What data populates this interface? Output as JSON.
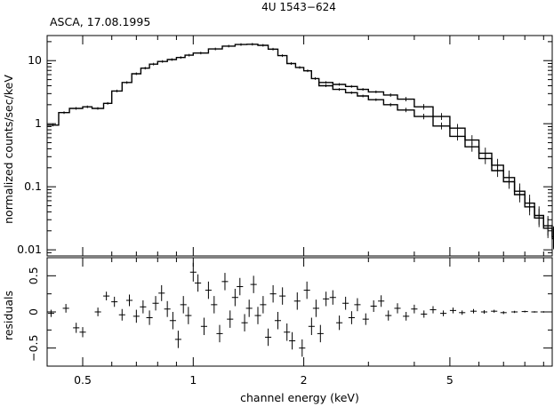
{
  "figure": {
    "title": "4U 1543−624",
    "subtitle": "ASCA, 17.08.1995"
  },
  "chart_data": [
    {
      "type": "line",
      "panel": "spectrum",
      "title": "4U 1543−624",
      "subtitle": "ASCA, 17.08.1995",
      "xlabel": "",
      "ylabel": "normalized counts/sec/keV",
      "xscale": "log",
      "yscale": "log",
      "xlim": [
        0.4,
        9.5
      ],
      "ylim": [
        0.008,
        25
      ],
      "yticks": [
        {
          "value": 0.01,
          "label": "0.01"
        },
        {
          "value": 0.1,
          "label": "0.1"
        },
        {
          "value": 1,
          "label": "1"
        },
        {
          "value": 10,
          "label": "10"
        }
      ],
      "grid": false,
      "series": [
        {
          "x": [
            0.4,
            0.43,
            0.46,
            0.5,
            0.53,
            0.57,
            0.6,
            0.64,
            0.68,
            0.72,
            0.76,
            0.8,
            0.85,
            0.9,
            0.95,
            1.0,
            1.1,
            1.2,
            1.3,
            1.4,
            1.5,
            1.6,
            1.7,
            1.8,
            1.9,
            2.0,
            2.1,
            2.2,
            2.4,
            2.6,
            2.8,
            3.0,
            3.3,
            3.6,
            4.0,
            4.5,
            5.0,
            5.5,
            6.0,
            6.5,
            7.0,
            7.5,
            8.0,
            8.5,
            9.0,
            9.5
          ],
          "values": [
            0.95,
            1.5,
            1.75,
            1.85,
            1.75,
            2.1,
            3.3,
            4.5,
            6.2,
            7.6,
            8.8,
            9.7,
            10.4,
            11.2,
            12.2,
            13.2,
            15.3,
            17.0,
            18.0,
            18.2,
            17.5,
            15.2,
            12.0,
            9.0,
            7.8,
            6.9,
            5.2,
            4.0,
            3.5,
            3.1,
            2.75,
            2.4,
            2.0,
            1.65,
            1.3,
            0.92,
            0.63,
            0.43,
            0.28,
            0.18,
            0.12,
            0.075,
            0.048,
            0.032,
            0.022,
            0.015
          ]
        },
        {
          "x": [
            2.2,
            2.4,
            2.6,
            2.8,
            3.0,
            3.3,
            3.6,
            4.0,
            4.5,
            5.0,
            5.5,
            6.0,
            6.5,
            7.0,
            7.5,
            8.0,
            8.5,
            9.0,
            9.5
          ],
          "values": [
            4.5,
            4.2,
            3.9,
            3.5,
            3.2,
            2.85,
            2.45,
            1.85,
            1.3,
            0.85,
            0.55,
            0.34,
            0.22,
            0.14,
            0.085,
            0.055,
            0.035,
            0.024,
            0.016
          ]
        }
      ]
    },
    {
      "type": "scatter",
      "panel": "residuals",
      "xlabel": "channel energy (keV)",
      "ylabel": "residuals",
      "xscale": "log",
      "xlim": [
        0.4,
        9.5
      ],
      "ylim": [
        -0.75,
        0.75
      ],
      "xticks": [
        {
          "value": 0.5,
          "label": "0.5"
        },
        {
          "value": 1,
          "label": "1"
        },
        {
          "value": 2,
          "label": "2"
        },
        {
          "value": 5,
          "label": "5"
        }
      ],
      "yticks": [
        {
          "value": -0.5,
          "label": "−0.5"
        },
        {
          "value": 0,
          "label": "0"
        },
        {
          "value": 0.5,
          "label": "0.5"
        }
      ],
      "grid": false,
      "points": [
        {
          "x": 0.41,
          "y": -0.02,
          "err": 0.05
        },
        {
          "x": 0.45,
          "y": 0.05,
          "err": 0.06
        },
        {
          "x": 0.48,
          "y": -0.22,
          "err": 0.07
        },
        {
          "x": 0.5,
          "y": -0.28,
          "err": 0.07
        },
        {
          "x": 0.55,
          "y": 0.0,
          "err": 0.06
        },
        {
          "x": 0.58,
          "y": 0.22,
          "err": 0.06
        },
        {
          "x": 0.61,
          "y": 0.14,
          "err": 0.07
        },
        {
          "x": 0.64,
          "y": -0.04,
          "err": 0.08
        },
        {
          "x": 0.67,
          "y": 0.16,
          "err": 0.08
        },
        {
          "x": 0.7,
          "y": -0.06,
          "err": 0.09
        },
        {
          "x": 0.73,
          "y": 0.07,
          "err": 0.09
        },
        {
          "x": 0.76,
          "y": -0.08,
          "err": 0.1
        },
        {
          "x": 0.79,
          "y": 0.12,
          "err": 0.1
        },
        {
          "x": 0.82,
          "y": 0.26,
          "err": 0.11
        },
        {
          "x": 0.85,
          "y": 0.04,
          "err": 0.11
        },
        {
          "x": 0.88,
          "y": -0.12,
          "err": 0.12
        },
        {
          "x": 0.91,
          "y": -0.38,
          "err": 0.12
        },
        {
          "x": 0.94,
          "y": 0.1,
          "err": 0.12
        },
        {
          "x": 0.97,
          "y": -0.05,
          "err": 0.12
        },
        {
          "x": 1.0,
          "y": 0.55,
          "err": 0.13
        },
        {
          "x": 1.03,
          "y": 0.4,
          "err": 0.12
        },
        {
          "x": 1.07,
          "y": -0.2,
          "err": 0.12
        },
        {
          "x": 1.1,
          "y": 0.3,
          "err": 0.12
        },
        {
          "x": 1.14,
          "y": 0.1,
          "err": 0.12
        },
        {
          "x": 1.18,
          "y": -0.3,
          "err": 0.12
        },
        {
          "x": 1.22,
          "y": 0.42,
          "err": 0.12
        },
        {
          "x": 1.26,
          "y": -0.1,
          "err": 0.12
        },
        {
          "x": 1.3,
          "y": 0.2,
          "err": 0.12
        },
        {
          "x": 1.34,
          "y": 0.35,
          "err": 0.12
        },
        {
          "x": 1.38,
          "y": -0.15,
          "err": 0.12
        },
        {
          "x": 1.42,
          "y": 0.05,
          "err": 0.12
        },
        {
          "x": 1.46,
          "y": 0.38,
          "err": 0.12
        },
        {
          "x": 1.5,
          "y": -0.05,
          "err": 0.12
        },
        {
          "x": 1.55,
          "y": 0.1,
          "err": 0.12
        },
        {
          "x": 1.6,
          "y": -0.35,
          "err": 0.12
        },
        {
          "x": 1.65,
          "y": 0.25,
          "err": 0.12
        },
        {
          "x": 1.7,
          "y": -0.12,
          "err": 0.12
        },
        {
          "x": 1.75,
          "y": 0.22,
          "err": 0.12
        },
        {
          "x": 1.8,
          "y": -0.28,
          "err": 0.12
        },
        {
          "x": 1.86,
          "y": -0.4,
          "err": 0.12
        },
        {
          "x": 1.92,
          "y": 0.15,
          "err": 0.12
        },
        {
          "x": 1.98,
          "y": -0.5,
          "err": 0.12
        },
        {
          "x": 2.04,
          "y": 0.3,
          "err": 0.12
        },
        {
          "x": 2.1,
          "y": -0.2,
          "err": 0.12
        },
        {
          "x": 2.16,
          "y": 0.05,
          "err": 0.12
        },
        {
          "x": 2.22,
          "y": -0.3,
          "err": 0.12
        },
        {
          "x": 2.3,
          "y": 0.18,
          "err": 0.1
        },
        {
          "x": 2.4,
          "y": 0.2,
          "err": 0.1
        },
        {
          "x": 2.5,
          "y": -0.15,
          "err": 0.1
        },
        {
          "x": 2.6,
          "y": 0.12,
          "err": 0.09
        },
        {
          "x": 2.7,
          "y": -0.08,
          "err": 0.09
        },
        {
          "x": 2.8,
          "y": 0.1,
          "err": 0.09
        },
        {
          "x": 2.95,
          "y": -0.1,
          "err": 0.08
        },
        {
          "x": 3.1,
          "y": 0.08,
          "err": 0.08
        },
        {
          "x": 3.25,
          "y": 0.15,
          "err": 0.08
        },
        {
          "x": 3.4,
          "y": -0.05,
          "err": 0.07
        },
        {
          "x": 3.6,
          "y": 0.05,
          "err": 0.07
        },
        {
          "x": 3.8,
          "y": -0.06,
          "err": 0.06
        },
        {
          "x": 4.0,
          "y": 0.04,
          "err": 0.06
        },
        {
          "x": 4.25,
          "y": -0.03,
          "err": 0.05
        },
        {
          "x": 4.5,
          "y": 0.03,
          "err": 0.05
        },
        {
          "x": 4.8,
          "y": -0.02,
          "err": 0.04
        },
        {
          "x": 5.1,
          "y": 0.02,
          "err": 0.04
        },
        {
          "x": 5.4,
          "y": -0.01,
          "err": 0.03
        },
        {
          "x": 5.8,
          "y": 0.01,
          "err": 0.03
        },
        {
          "x": 6.2,
          "y": 0.0,
          "err": 0.025
        },
        {
          "x": 6.6,
          "y": 0.01,
          "err": 0.02
        },
        {
          "x": 7.0,
          "y": -0.01,
          "err": 0.02
        },
        {
          "x": 7.5,
          "y": 0.0,
          "err": 0.015
        },
        {
          "x": 8.0,
          "y": 0.005,
          "err": 0.012
        },
        {
          "x": 8.5,
          "y": 0.0,
          "err": 0.01
        },
        {
          "x": 9.0,
          "y": 0.0,
          "err": 0.01
        }
      ]
    }
  ]
}
